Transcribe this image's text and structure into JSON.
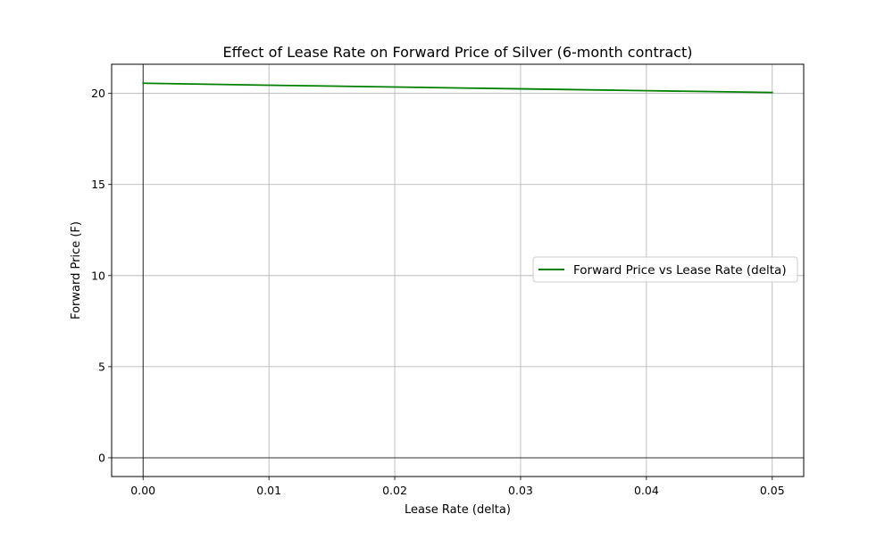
{
  "chart_data": {
    "type": "line",
    "title": "Effect of Lease Rate on Forward Price of Silver (6-month contract)",
    "xlabel": "Lease Rate (delta)",
    "ylabel": "Forward Price (F)",
    "xlim": [
      -0.0025,
      0.0525
    ],
    "ylim": [
      -1.03,
      21.6
    ],
    "x_ticks": [
      0.0,
      0.01,
      0.02,
      0.03,
      0.04,
      0.05
    ],
    "x_tick_labels": [
      "0.00",
      "0.01",
      "0.02",
      "0.03",
      "0.04",
      "0.05"
    ],
    "y_ticks": [
      0,
      5,
      10,
      15,
      20
    ],
    "y_tick_labels": [
      "0",
      "5",
      "10",
      "15",
      "20"
    ],
    "grid": true,
    "zero_lines": true,
    "legend_position": "center-right",
    "series": [
      {
        "name": "Forward Price vs Lease Rate (delta)",
        "color": "#008000",
        "x": [
          0.0,
          0.01,
          0.02,
          0.03,
          0.04,
          0.05
        ],
        "y": [
          20.56,
          20.45,
          20.35,
          20.25,
          20.15,
          20.05
        ]
      }
    ]
  }
}
